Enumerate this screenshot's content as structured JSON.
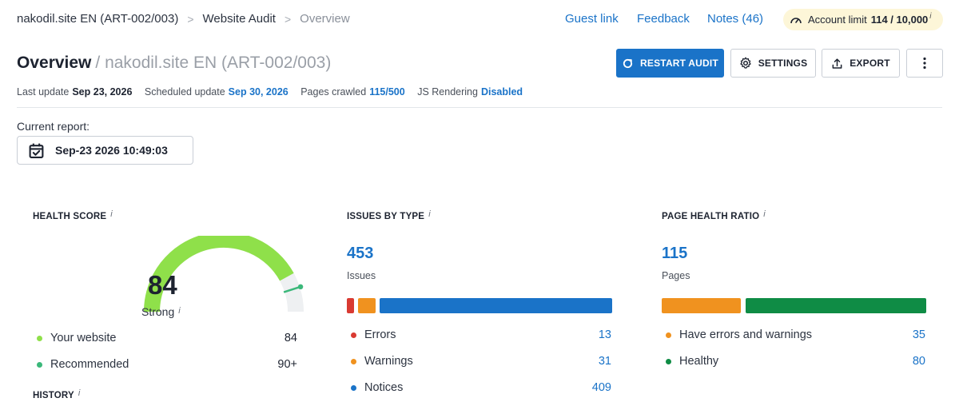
{
  "breadcrumb": {
    "items": [
      "nakodil.site EN (ART-002/003)",
      "Website Audit",
      "Overview"
    ],
    "separator": ">"
  },
  "toplinks": {
    "guest_link": "Guest link",
    "feedback": "Feedback",
    "notes": "Notes (46)"
  },
  "account": {
    "label": "Account limit",
    "value": "114 / 10,000",
    "info": "i"
  },
  "page": {
    "title": "Overview",
    "subtitle": "/ nakodil.site EN (ART-002/003)"
  },
  "actions": {
    "restart": "RESTART AUDIT",
    "settings": "SETTINGS",
    "export": "EXPORT"
  },
  "meta": {
    "last_update_label": "Last update",
    "last_update_value": "Sep 23, 2026",
    "scheduled_label": "Scheduled update",
    "scheduled_value": "Sep 30, 2026",
    "crawled_label": "Pages crawled",
    "crawled_value": "115/500",
    "js_label": "JS Rendering",
    "js_value": "Disabled"
  },
  "report": {
    "label": "Current report:",
    "value": "Sep-23 2026 10:49:03"
  },
  "health": {
    "heading": "HEALTH SCORE",
    "score": "84",
    "score_value": 84,
    "recommended_value": 90,
    "rating": "Strong",
    "legend": [
      {
        "label": "Your website",
        "value": "84",
        "color": "#8fe04a"
      },
      {
        "label": "Recommended",
        "value": "90+",
        "color": "#3bb87a"
      }
    ],
    "history_heading": "HISTORY"
  },
  "issues": {
    "heading": "ISSUES BY TYPE",
    "total": "453",
    "total_label": "Issues",
    "items": [
      {
        "label": "Errors",
        "value": "13",
        "count": 13,
        "color": "#d93a32"
      },
      {
        "label": "Warnings",
        "value": "31",
        "count": 31,
        "color": "#f0921f"
      },
      {
        "label": "Notices",
        "value": "409",
        "count": 409,
        "color": "#1a73c8"
      }
    ]
  },
  "page_health": {
    "heading": "PAGE HEALTH RATIO",
    "total": "115",
    "total_label": "Pages",
    "items": [
      {
        "label": "Have errors and warnings",
        "value": "35",
        "count": 35,
        "color": "#f0921f"
      },
      {
        "label": "Healthy",
        "value": "80",
        "count": 80,
        "color": "#0f8c45"
      }
    ]
  },
  "info_glyph": "i"
}
